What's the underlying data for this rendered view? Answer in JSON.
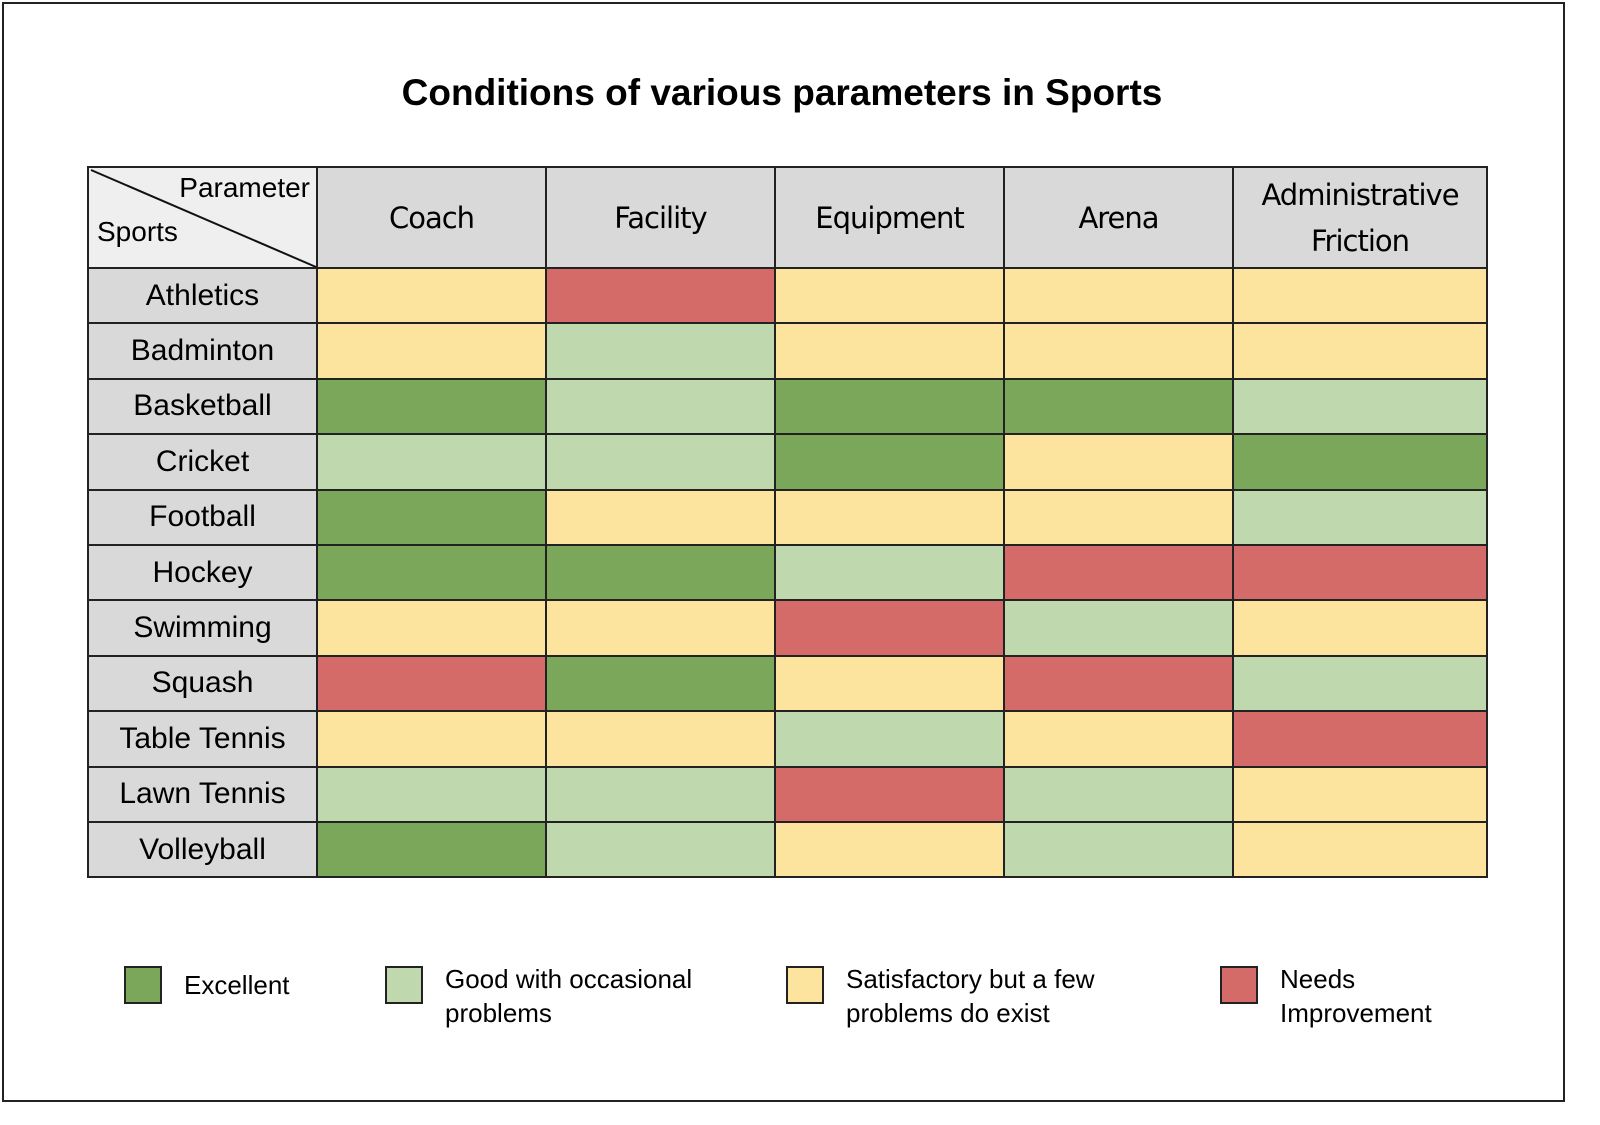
{
  "chart_data": {
    "type": "heatmap",
    "title": "Conditions of various parameters in Sports",
    "corner": {
      "column_axis": "Parameter",
      "row_axis": "Sports"
    },
    "columns": [
      "Coach",
      "Facility",
      "Equipment",
      "Arena",
      "Administrative Friction"
    ],
    "rows": [
      "Athletics",
      "Badminton",
      "Basketball",
      "Cricket",
      "Football",
      "Hockey",
      "Swimming",
      "Squash",
      "Table Tennis",
      "Lawn Tennis",
      "Volleyball"
    ],
    "values": [
      [
        "Satisfactory",
        "Needs Improvement",
        "Satisfactory",
        "Satisfactory",
        "Satisfactory"
      ],
      [
        "Satisfactory",
        "Good",
        "Satisfactory",
        "Satisfactory",
        "Satisfactory"
      ],
      [
        "Excellent",
        "Good",
        "Excellent",
        "Excellent",
        "Good"
      ],
      [
        "Good",
        "Good",
        "Excellent",
        "Satisfactory",
        "Excellent"
      ],
      [
        "Excellent",
        "Satisfactory",
        "Satisfactory",
        "Satisfactory",
        "Good"
      ],
      [
        "Excellent",
        "Excellent",
        "Good",
        "Needs Improvement",
        "Needs Improvement"
      ],
      [
        "Satisfactory",
        "Satisfactory",
        "Needs Improvement",
        "Good",
        "Satisfactory"
      ],
      [
        "Needs Improvement",
        "Excellent",
        "Satisfactory",
        "Needs Improvement",
        "Good"
      ],
      [
        "Satisfactory",
        "Satisfactory",
        "Good",
        "Satisfactory",
        "Needs Improvement"
      ],
      [
        "Good",
        "Good",
        "Needs Improvement",
        "Good",
        "Satisfactory"
      ],
      [
        "Excellent",
        "Good",
        "Satisfactory",
        "Good",
        "Satisfactory"
      ]
    ],
    "legend": [
      {
        "key": "Excellent",
        "label": "Excellent",
        "color": "#7aa75a"
      },
      {
        "key": "Good",
        "label": "Good with occasional problems",
        "color": "#bfd8ae"
      },
      {
        "key": "Satisfactory",
        "label": "Satisfactory but a few problems do exist",
        "color": "#fce49f"
      },
      {
        "key": "Needs Improvement",
        "label": "Needs Improvement",
        "color": "#d46b68"
      }
    ],
    "legend_position": "bottom",
    "header_color": "#d9d9d9"
  }
}
